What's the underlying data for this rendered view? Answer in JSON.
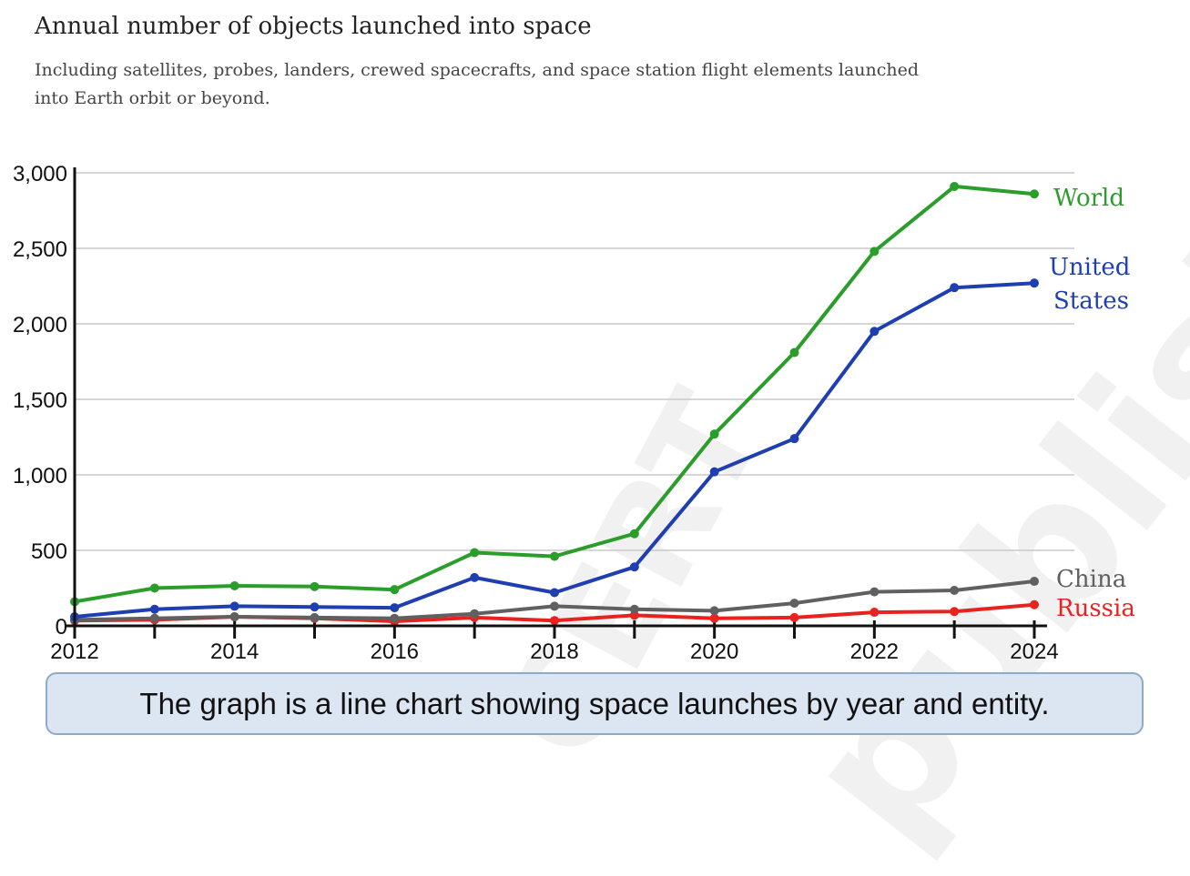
{
  "chart_data": {
    "type": "line",
    "title": "Annual number of objects launched into space",
    "subtitle": "Including satellites, probes, landers, crewed spacecrafts, and space station flight elements launched into Earth orbit or beyond.",
    "x": [
      2012,
      2013,
      2014,
      2015,
      2016,
      2017,
      2018,
      2019,
      2020,
      2021,
      2022,
      2023,
      2024
    ],
    "xticks": [
      "2012",
      "2014",
      "2016",
      "2018",
      "2020",
      "2022",
      "2024"
    ],
    "yticks": [
      "0",
      "500",
      "1,000",
      "1,500",
      "2,000",
      "2,500",
      "3,000"
    ],
    "ylim": [
      0,
      3000
    ],
    "grid": true,
    "legend": "inline labels at line ends",
    "series": [
      {
        "name": "World",
        "color": "#2a9d2a",
        "values": [
          160,
          250,
          265,
          260,
          240,
          485,
          460,
          610,
          1270,
          1810,
          2480,
          2910,
          2860
        ]
      },
      {
        "name": "United States",
        "color": "#1f3fb0",
        "values": [
          60,
          110,
          130,
          125,
          120,
          320,
          220,
          390,
          1020,
          1240,
          1950,
          2240,
          2270
        ]
      },
      {
        "name": "China",
        "color": "#606060",
        "values": [
          40,
          50,
          60,
          55,
          50,
          80,
          130,
          110,
          100,
          150,
          225,
          235,
          295
        ]
      },
      {
        "name": "Russia",
        "color": "#e8231f",
        "values": [
          35,
          40,
          60,
          50,
          30,
          55,
          35,
          70,
          50,
          55,
          90,
          95,
          140
        ]
      }
    ]
  },
  "caption": "The graph is a line chart showing space launches by year and entity.",
  "watermark": [
    "CERT",
    "published"
  ]
}
